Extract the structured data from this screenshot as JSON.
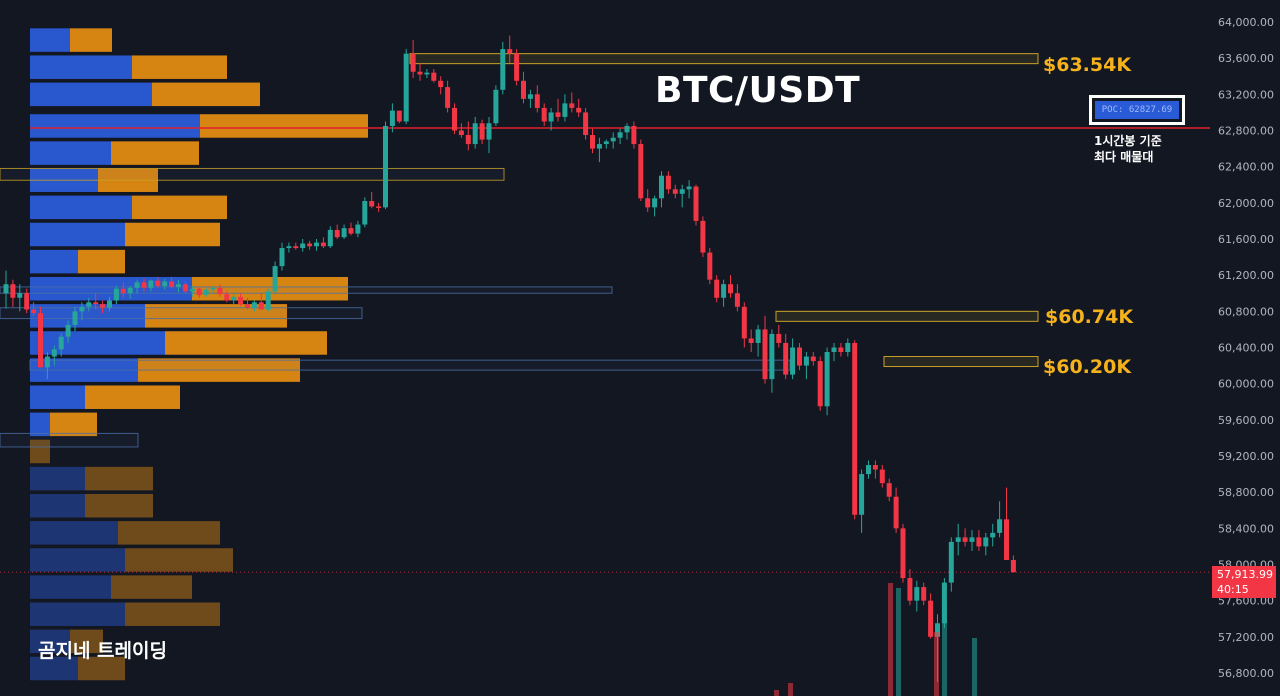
{
  "title": "BTC/USDT",
  "watermark": "곰지네 트레이딩",
  "poc": {
    "label": "POC: 62827.69",
    "note_line1": "1시간봉 기준",
    "note_line2": "최다 매물대"
  },
  "levels": [
    {
      "label": "$63.54K",
      "price": 63540
    },
    {
      "label": "$60.74K",
      "price": 60740
    },
    {
      "label": "$60.20K",
      "price": 60200
    }
  ],
  "current_price": {
    "value": "57,913.99",
    "countdown": "40:15"
  },
  "chart_data": {
    "type": "candlestick",
    "title": "BTC/USDT",
    "y_axis": {
      "ticks": [
        "64,000.00",
        "63,600.00",
        "63,200.00",
        "62,800.00",
        "62,400.00",
        "62,000.00",
        "61,600.00",
        "61,200.00",
        "60,800.00",
        "60,400.00",
        "60,000.00",
        "59,600.00",
        "59,200.00",
        "58,800.00",
        "58,400.00",
        "58,000.00",
        "57,600.00",
        "57,200.00",
        "56,800.00"
      ],
      "range": [
        56800,
        64000
      ],
      "side": "right"
    },
    "poc_price": 62827.69,
    "close_price": 57913.99,
    "candles": [
      [
        61000,
        61250,
        60830,
        61100
      ],
      [
        61100,
        61150,
        60850,
        60950
      ],
      [
        60950,
        61100,
        60800,
        61000
      ],
      [
        61000,
        61050,
        60780,
        60820
      ],
      [
        60820,
        60900,
        60750,
        60780
      ],
      [
        60780,
        60850,
        60250,
        60180
      ],
      [
        60180,
        60350,
        60050,
        60300
      ],
      [
        60300,
        60420,
        60200,
        60380
      ],
      [
        60380,
        60560,
        60300,
        60520
      ],
      [
        60520,
        60700,
        60450,
        60650
      ],
      [
        60650,
        60850,
        60580,
        60800
      ],
      [
        60800,
        60900,
        60700,
        60850
      ],
      [
        60850,
        60950,
        60800,
        60900
      ],
      [
        60900,
        61000,
        60820,
        60880
      ],
      [
        60880,
        60920,
        60780,
        60840
      ],
      [
        60840,
        60960,
        60800,
        60920
      ],
      [
        60920,
        61080,
        60880,
        61050
      ],
      [
        61050,
        61120,
        60950,
        61000
      ],
      [
        61000,
        61080,
        60940,
        61060
      ],
      [
        61060,
        61150,
        61000,
        61120
      ],
      [
        61120,
        61160,
        61020,
        61060
      ],
      [
        61060,
        61150,
        61020,
        61140
      ],
      [
        61140,
        61180,
        61060,
        61080
      ],
      [
        61080,
        61160,
        61040,
        61130
      ],
      [
        61130,
        61180,
        61060,
        61070
      ],
      [
        61070,
        61150,
        61010,
        61100
      ],
      [
        61100,
        61130,
        61000,
        61020
      ],
      [
        61020,
        61080,
        60960,
        61050
      ],
      [
        61050,
        61060,
        60950,
        60980
      ],
      [
        60980,
        61060,
        60960,
        61040
      ],
      [
        61040,
        61080,
        61000,
        61060
      ],
      [
        61060,
        61100,
        60960,
        60990
      ],
      [
        60990,
        61020,
        60900,
        60920
      ],
      [
        60920,
        61000,
        60880,
        60960
      ],
      [
        60960,
        61000,
        60860,
        60880
      ],
      [
        60880,
        60950,
        60820,
        60840
      ],
      [
        60840,
        60920,
        60800,
        60900
      ],
      [
        60900,
        61000,
        60820,
        60820
      ],
      [
        60820,
        61050,
        60800,
        61020
      ],
      [
        61020,
        61350,
        60980,
        61300
      ],
      [
        61300,
        61560,
        61250,
        61500
      ],
      [
        61500,
        61560,
        61450,
        61520
      ],
      [
        61520,
        61560,
        61480,
        61500
      ],
      [
        61500,
        61600,
        61460,
        61550
      ],
      [
        61550,
        61580,
        61480,
        61520
      ],
      [
        61520,
        61600,
        61470,
        61560
      ],
      [
        61560,
        61620,
        61500,
        61520
      ],
      [
        61520,
        61740,
        61500,
        61700
      ],
      [
        61700,
        61760,
        61600,
        61620
      ],
      [
        61620,
        61760,
        61600,
        61720
      ],
      [
        61720,
        61780,
        61640,
        61660
      ],
      [
        61660,
        61800,
        61620,
        61760
      ],
      [
        61760,
        62060,
        61730,
        62020
      ],
      [
        62020,
        62120,
        61940,
        61960
      ],
      [
        61960,
        62000,
        61900,
        61950
      ],
      [
        61950,
        62900,
        61930,
        62850
      ],
      [
        62850,
        63100,
        62780,
        63020
      ],
      [
        63020,
        63000,
        62880,
        62900
      ],
      [
        62900,
        63700,
        62870,
        63650
      ],
      [
        63650,
        63800,
        63380,
        63450
      ],
      [
        63450,
        63550,
        63350,
        63420
      ],
      [
        63420,
        63480,
        63380,
        63440
      ],
      [
        63440,
        63480,
        63330,
        63350
      ],
      [
        63350,
        63400,
        63200,
        63280
      ],
      [
        63280,
        63350,
        63000,
        63050
      ],
      [
        63050,
        63100,
        62760,
        62800
      ],
      [
        62800,
        62880,
        62720,
        62750
      ],
      [
        62750,
        62900,
        62580,
        62650
      ],
      [
        62650,
        62950,
        62600,
        62880
      ],
      [
        62880,
        62920,
        62650,
        62700
      ],
      [
        62700,
        62950,
        62550,
        62880
      ],
      [
        62880,
        63300,
        62850,
        63250
      ],
      [
        63250,
        63780,
        63200,
        63700
      ],
      [
        63700,
        63850,
        63550,
        63650
      ],
      [
        63650,
        63700,
        63300,
        63350
      ],
      [
        63350,
        63450,
        63100,
        63150
      ],
      [
        63150,
        63250,
        63050,
        63200
      ],
      [
        63200,
        63300,
        63000,
        63050
      ],
      [
        63050,
        63100,
        62850,
        62900
      ],
      [
        62900,
        63050,
        62800,
        63000
      ],
      [
        63000,
        63150,
        62900,
        62950
      ],
      [
        62950,
        63200,
        62900,
        63100
      ],
      [
        63100,
        63220,
        63000,
        63050
      ],
      [
        63050,
        63150,
        62950,
        63000
      ],
      [
        63000,
        63050,
        62700,
        62750
      ],
      [
        62750,
        62820,
        62550,
        62600
      ],
      [
        62600,
        62720,
        62450,
        62650
      ],
      [
        62650,
        62700,
        62600,
        62680
      ],
      [
        62680,
        62780,
        62600,
        62720
      ],
      [
        62720,
        62820,
        62650,
        62780
      ],
      [
        62780,
        62880,
        62700,
        62850
      ],
      [
        62850,
        62900,
        62600,
        62650
      ],
      [
        62650,
        62700,
        62020,
        62050
      ],
      [
        62050,
        62150,
        61900,
        61950
      ],
      [
        61950,
        62080,
        61850,
        62050
      ],
      [
        62050,
        62350,
        61950,
        62300
      ],
      [
        62300,
        62350,
        62100,
        62150
      ],
      [
        62150,
        62200,
        62050,
        62100
      ],
      [
        62100,
        62200,
        61950,
        62150
      ],
      [
        62150,
        62250,
        62050,
        62180
      ],
      [
        62180,
        62200,
        61750,
        61800
      ],
      [
        61800,
        61850,
        61400,
        61450
      ],
      [
        61450,
        61500,
        61100,
        61150
      ],
      [
        61150,
        61200,
        60900,
        60950
      ],
      [
        60950,
        61150,
        60850,
        61100
      ],
      [
        61100,
        61200,
        60950,
        61000
      ],
      [
        61000,
        61100,
        60800,
        60850
      ],
      [
        60850,
        60900,
        60400,
        60500
      ],
      [
        60500,
        60600,
        60350,
        60450
      ],
      [
        60450,
        60650,
        60300,
        60600
      ],
      [
        60600,
        60750,
        60000,
        60050
      ],
      [
        60050,
        60600,
        59900,
        60550
      ],
      [
        60550,
        60650,
        60400,
        60450
      ],
      [
        60450,
        60550,
        60050,
        60100
      ],
      [
        60100,
        60500,
        60050,
        60400
      ],
      [
        60400,
        60450,
        60150,
        60200
      ],
      [
        60200,
        60350,
        60050,
        60300
      ],
      [
        60300,
        60350,
        60200,
        60250
      ],
      [
        60250,
        60300,
        59700,
        59750
      ],
      [
        59750,
        60400,
        59650,
        60350
      ],
      [
        60350,
        60450,
        60250,
        60400
      ],
      [
        60400,
        60450,
        60300,
        60350
      ],
      [
        60350,
        60500,
        60300,
        60450
      ],
      [
        60450,
        60480,
        58500,
        58550
      ],
      [
        58550,
        59050,
        58350,
        59000
      ],
      [
        59000,
        59150,
        58950,
        59100
      ],
      [
        59100,
        59150,
        58950,
        59050
      ],
      [
        59050,
        59100,
        58850,
        58900
      ],
      [
        58900,
        58950,
        58700,
        58750
      ],
      [
        58750,
        58850,
        58350,
        58400
      ],
      [
        58400,
        58450,
        57800,
        57850
      ],
      [
        57850,
        57950,
        57550,
        57600
      ],
      [
        57600,
        57820,
        57480,
        57750
      ],
      [
        57750,
        57800,
        57550,
        57600
      ],
      [
        57600,
        57680,
        57180,
        57200
      ],
      [
        57200,
        57450,
        56700,
        57350
      ],
      [
        57350,
        57850,
        57300,
        57800
      ],
      [
        57800,
        58300,
        57700,
        58250
      ],
      [
        58250,
        58450,
        58100,
        58300
      ],
      [
        58300,
        58400,
        58200,
        58250
      ],
      [
        58250,
        58380,
        58150,
        58300
      ],
      [
        58300,
        58380,
        58150,
        58200
      ],
      [
        58200,
        58350,
        58100,
        58300
      ],
      [
        58300,
        58450,
        58200,
        58350
      ],
      [
        58350,
        58700,
        58300,
        58500
      ],
      [
        58500,
        58850,
        58050,
        58050
      ],
      [
        58050,
        58100,
        57913.99,
        57913.99
      ]
    ],
    "volume_profile": [
      {
        "price": 63800,
        "buy": 40,
        "sell": 42
      },
      {
        "price": 63500,
        "buy": 102,
        "sell": 95
      },
      {
        "price": 63200,
        "buy": 122,
        "sell": 108
      },
      {
        "price": 62850,
        "buy": 170,
        "sell": 168
      },
      {
        "price": 62550,
        "buy": 81,
        "sell": 88
      },
      {
        "price": 62250,
        "buy": 68,
        "sell": 60
      },
      {
        "price": 61950,
        "buy": 102,
        "sell": 95
      },
      {
        "price": 61650,
        "buy": 95,
        "sell": 95
      },
      {
        "price": 61350,
        "buy": 48,
        "sell": 47
      },
      {
        "price": 61050,
        "buy": 162,
        "sell": 156
      },
      {
        "price": 60750,
        "buy": 115,
        "sell": 142
      },
      {
        "price": 60450,
        "buy": 135,
        "sell": 162
      },
      {
        "price": 60150,
        "buy": 108,
        "sell": 162
      },
      {
        "price": 59850,
        "buy": 55,
        "sell": 95
      },
      {
        "price": 59550,
        "buy": 20,
        "sell": 47
      },
      {
        "price": 59250,
        "buy": 0,
        "sell": 20
      },
      {
        "price": 58950,
        "buy": 55,
        "sell": 68
      },
      {
        "price": 58650,
        "buy": 55,
        "sell": 68
      },
      {
        "price": 58350,
        "buy": 88,
        "sell": 102
      },
      {
        "price": 58050,
        "buy": 95,
        "sell": 108
      },
      {
        "price": 57750,
        "buy": 81,
        "sell": 81
      },
      {
        "price": 57450,
        "buy": 95,
        "sell": 95
      },
      {
        "price": 57150,
        "buy": 40,
        "sell": 33
      },
      {
        "price": 56850,
        "buy": 48,
        "sell": 47
      }
    ],
    "zones": [
      {
        "top": 63650,
        "bottom": 63540,
        "label": "$63.54K"
      },
      {
        "top": 60800,
        "bottom": 60740,
        "label": "$60.74K"
      },
      {
        "top": 60300,
        "bottom": 60200,
        "label": "$60.20K"
      }
    ]
  },
  "colors": {
    "up": "#26a69a",
    "down": "#f23645",
    "buy": "#2a5bd7",
    "sell": "#e08a12",
    "poc_line": "#e0202a",
    "zone": "#c9a227",
    "background": "#131722",
    "axis_text": "#b2b5be"
  }
}
